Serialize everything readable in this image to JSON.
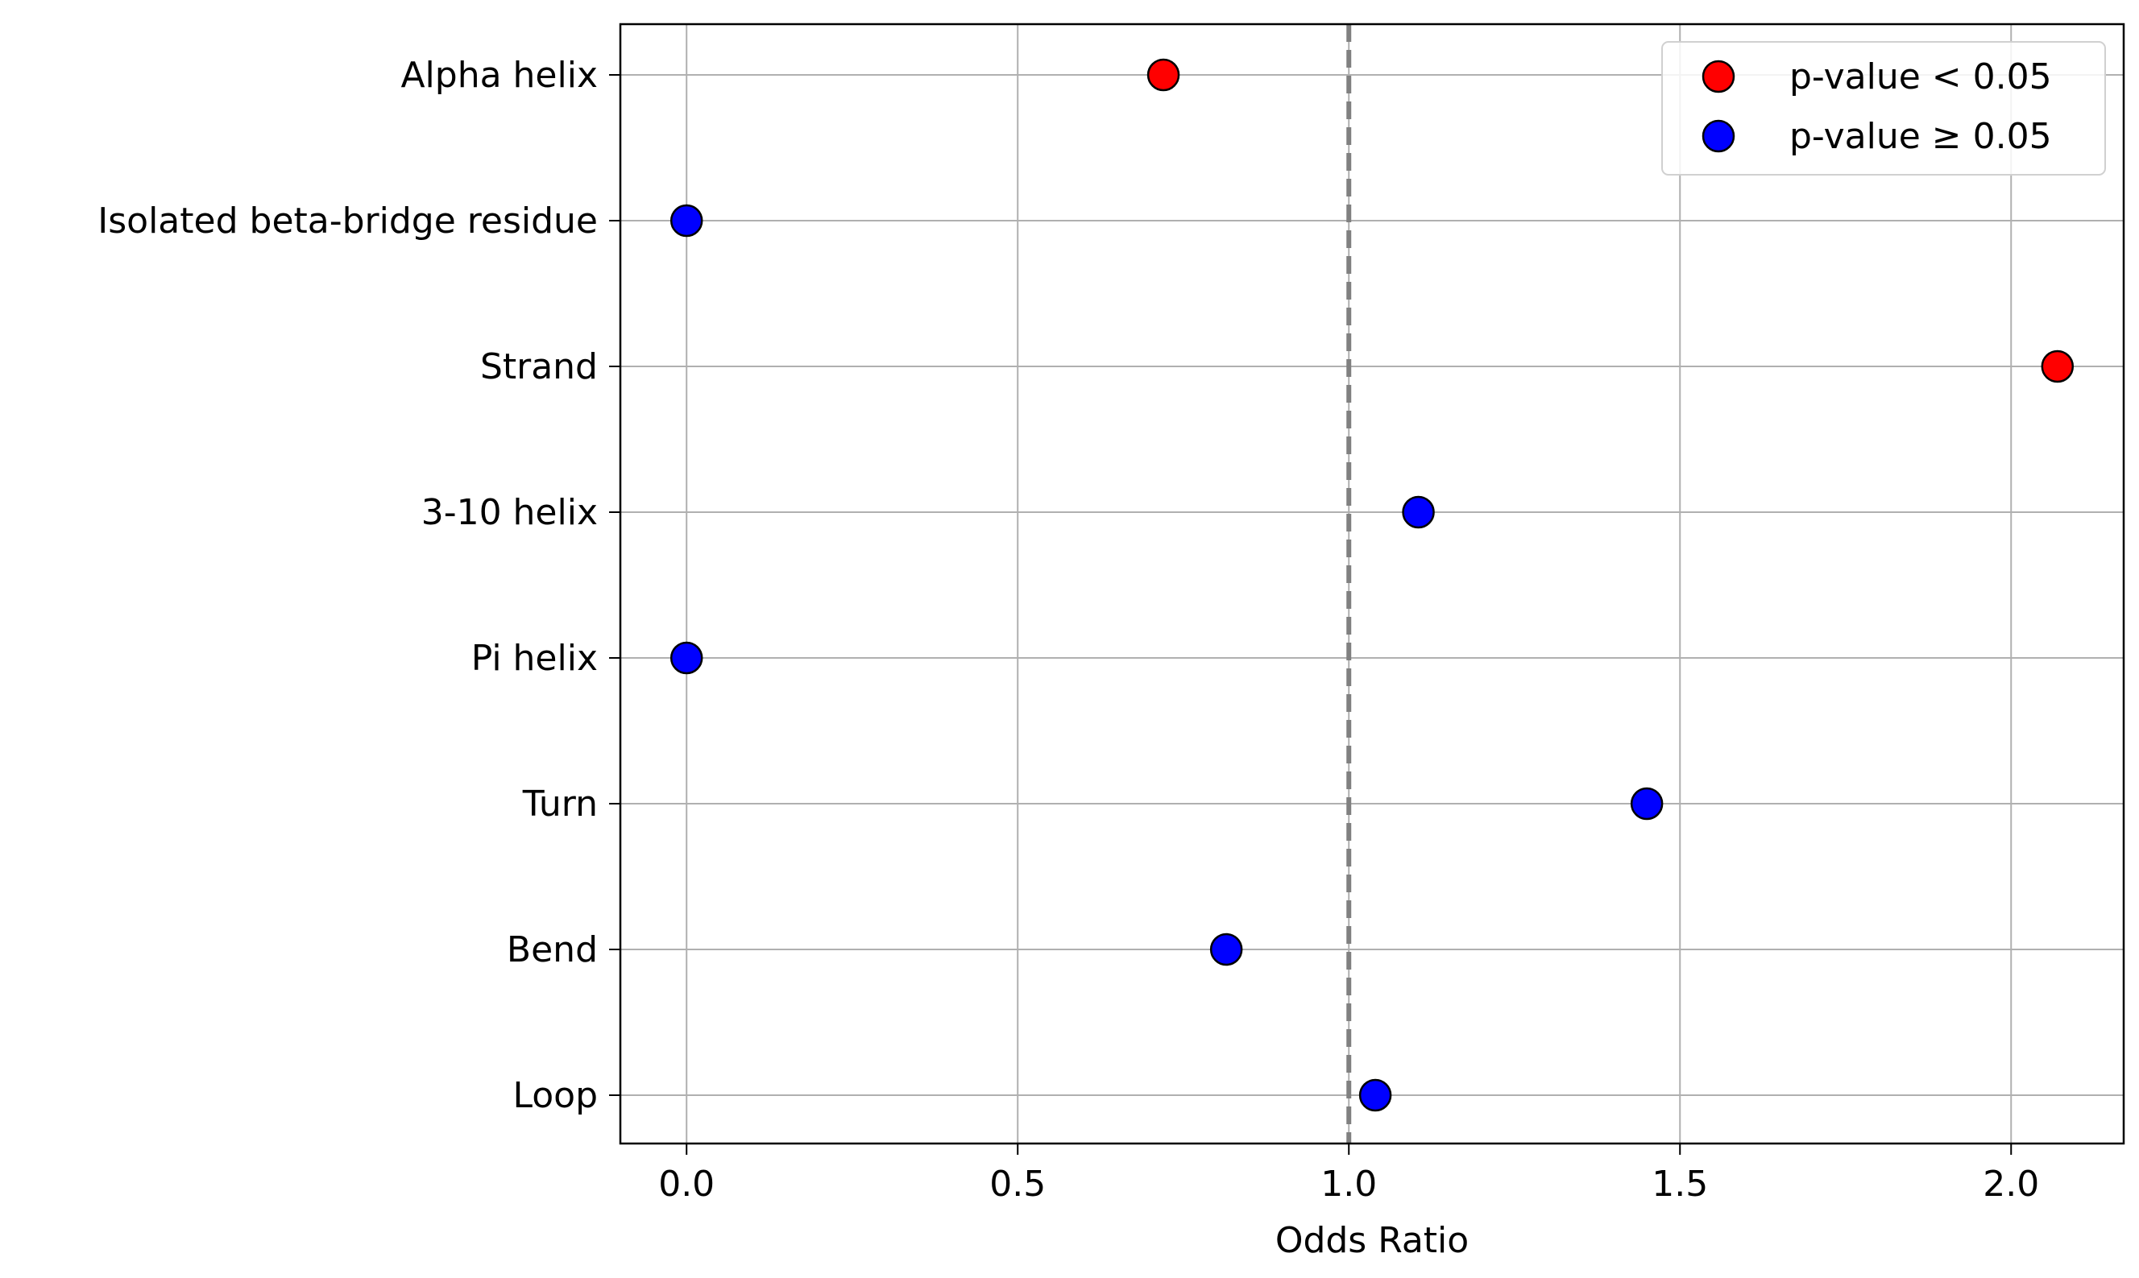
{
  "chart_data": {
    "type": "scatter",
    "title": "",
    "xlabel": "Odds Ratio",
    "ylabel": "",
    "xlim": [
      -0.1,
      2.17
    ],
    "xticks": [
      0.0,
      0.5,
      1.0,
      1.5,
      2.0
    ],
    "xtick_labels": [
      "0.0",
      "0.5",
      "1.0",
      "1.5",
      "2.0"
    ],
    "categories": [
      "Alpha helix",
      "Isolated beta-bridge residue",
      "Strand",
      "3-10 helix",
      "Pi helix",
      "Turn",
      "Bend",
      "Loop"
    ],
    "values": [
      0.72,
      0.0,
      2.07,
      1.105,
      0.0,
      1.45,
      0.815,
      1.04
    ],
    "significant": [
      true,
      false,
      true,
      false,
      false,
      false,
      false,
      false
    ],
    "reference_line": {
      "x": 1.0,
      "style": "dashed",
      "color": "#808080"
    },
    "grid": true,
    "colors": {
      "significant": "#ff0000",
      "not_significant": "#0000ff",
      "grid": "#b0b0b0"
    },
    "legend": {
      "placement": "top-right",
      "entries": [
        {
          "label": "p-value < 0.05",
          "color": "#ff0000"
        },
        {
          "label": "p-value ≥ 0.05",
          "color": "#0000ff"
        }
      ]
    }
  }
}
